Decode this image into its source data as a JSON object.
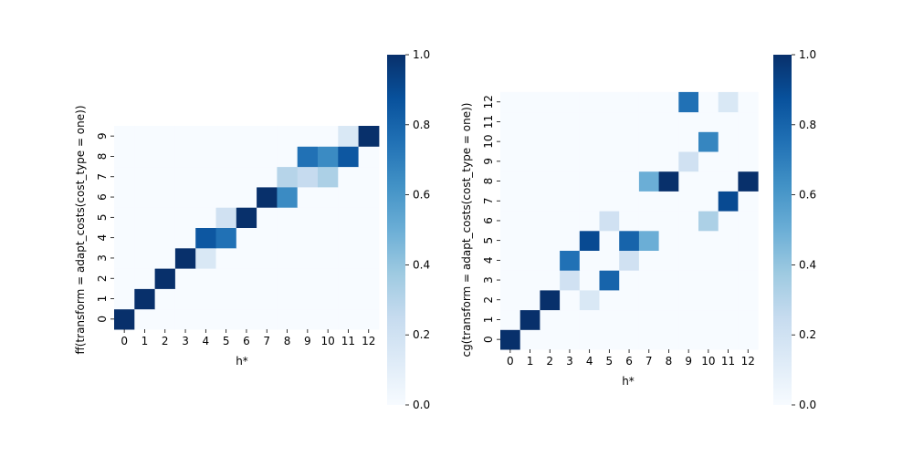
{
  "colormap": {
    "name": "Blues",
    "stops": [
      "#f7fbff",
      "#deebf7",
      "#c6dbef",
      "#9ecae1",
      "#6baed6",
      "#4292c6",
      "#2171b5",
      "#08519c",
      "#08306b"
    ]
  },
  "chart_data": [
    {
      "type": "heatmap",
      "xlabel": "h*",
      "ylabel": "ff(transform = adapt_costs(cost_type = one))",
      "x_ticks": [
        "0",
        "1",
        "2",
        "3",
        "4",
        "5",
        "6",
        "7",
        "8",
        "9",
        "10",
        "11",
        "12"
      ],
      "y_ticks": [
        "0",
        "1",
        "2",
        "3",
        "4",
        "5",
        "6",
        "7",
        "8",
        "9"
      ],
      "vmin": 0,
      "vmax": 1,
      "colorbar_ticks": [
        "0.0",
        "0.2",
        "0.4",
        "0.6",
        "0.8",
        "1.0"
      ],
      "values": [
        [
          1,
          0,
          0,
          0,
          0,
          0,
          0,
          0,
          0,
          0,
          0,
          0,
          0
        ],
        [
          0,
          1,
          0,
          0,
          0,
          0,
          0,
          0,
          0,
          0,
          0,
          0,
          0
        ],
        [
          0,
          0,
          1,
          0,
          0,
          0,
          0,
          0,
          0,
          0,
          0,
          0,
          0
        ],
        [
          0,
          0,
          0,
          1,
          0.15,
          0,
          0,
          0,
          0,
          0,
          0,
          0,
          0
        ],
        [
          0,
          0,
          0,
          0,
          0.85,
          0.75,
          0,
          0,
          0,
          0,
          0,
          0,
          0
        ],
        [
          0,
          0,
          0,
          0,
          0,
          0.2,
          1,
          0,
          0,
          0,
          0,
          0,
          0
        ],
        [
          0,
          0,
          0,
          0,
          0,
          0,
          0,
          1,
          0.65,
          0,
          0,
          0,
          0
        ],
        [
          0,
          0,
          0,
          0,
          0,
          0,
          0,
          0,
          0.3,
          0.25,
          0.33,
          0,
          0
        ],
        [
          0,
          0,
          0,
          0,
          0,
          0,
          0,
          0,
          0,
          0.75,
          0.65,
          0.85,
          0
        ],
        [
          0,
          0,
          0,
          0,
          0,
          0,
          0,
          0,
          0,
          0,
          0,
          0.15,
          1
        ]
      ]
    },
    {
      "type": "heatmap",
      "xlabel": "h*",
      "ylabel": "cg(transform = adapt_costs(cost_type = one))",
      "x_ticks": [
        "0",
        "1",
        "2",
        "3",
        "4",
        "5",
        "6",
        "7",
        "8",
        "9",
        "10",
        "11",
        "12"
      ],
      "y_ticks": [
        "0",
        "1",
        "2",
        "3",
        "4",
        "5",
        "6",
        "7",
        "8",
        "9",
        "10",
        "11",
        "12"
      ],
      "vmin": 0,
      "vmax": 1,
      "colorbar_ticks": [
        "0.0",
        "0.2",
        "0.4",
        "0.6",
        "0.8",
        "1.0"
      ],
      "values": [
        [
          1,
          0,
          0,
          0,
          0,
          0,
          0,
          0,
          0,
          0,
          0,
          0,
          0
        ],
        [
          0,
          1,
          0,
          0,
          0,
          0,
          0,
          0,
          0,
          0,
          0,
          0,
          0
        ],
        [
          0,
          0,
          1,
          0,
          0.15,
          0,
          0,
          0,
          0,
          0,
          0,
          0,
          0
        ],
        [
          0,
          0,
          0,
          0.2,
          0,
          0.8,
          0,
          0,
          0,
          0,
          0,
          0,
          0
        ],
        [
          0,
          0,
          0,
          0.75,
          0,
          0,
          0.2,
          0,
          0,
          0,
          0,
          0,
          0
        ],
        [
          0,
          0,
          0,
          0,
          0.9,
          0,
          0.8,
          0.5,
          0,
          0,
          0,
          0,
          0
        ],
        [
          0,
          0,
          0,
          0,
          0,
          0.2,
          0,
          0,
          0,
          0,
          0.33,
          0,
          0
        ],
        [
          0,
          0,
          0,
          0,
          0,
          0,
          0,
          0,
          0,
          0,
          0,
          0.9,
          0
        ],
        [
          0,
          0,
          0,
          0,
          0,
          0,
          0,
          0.5,
          1,
          0,
          0,
          0,
          1
        ],
        [
          0,
          0,
          0,
          0,
          0,
          0,
          0,
          0,
          0,
          0.2,
          0,
          0,
          0
        ],
        [
          0,
          0,
          0,
          0,
          0,
          0,
          0,
          0,
          0,
          0,
          0.67,
          0,
          0
        ],
        [
          0,
          0,
          0,
          0,
          0,
          0,
          0,
          0,
          0,
          0,
          0,
          0,
          0
        ],
        [
          0,
          0,
          0,
          0,
          0,
          0,
          0,
          0,
          0,
          0.75,
          0,
          0.15,
          0
        ]
      ]
    }
  ]
}
